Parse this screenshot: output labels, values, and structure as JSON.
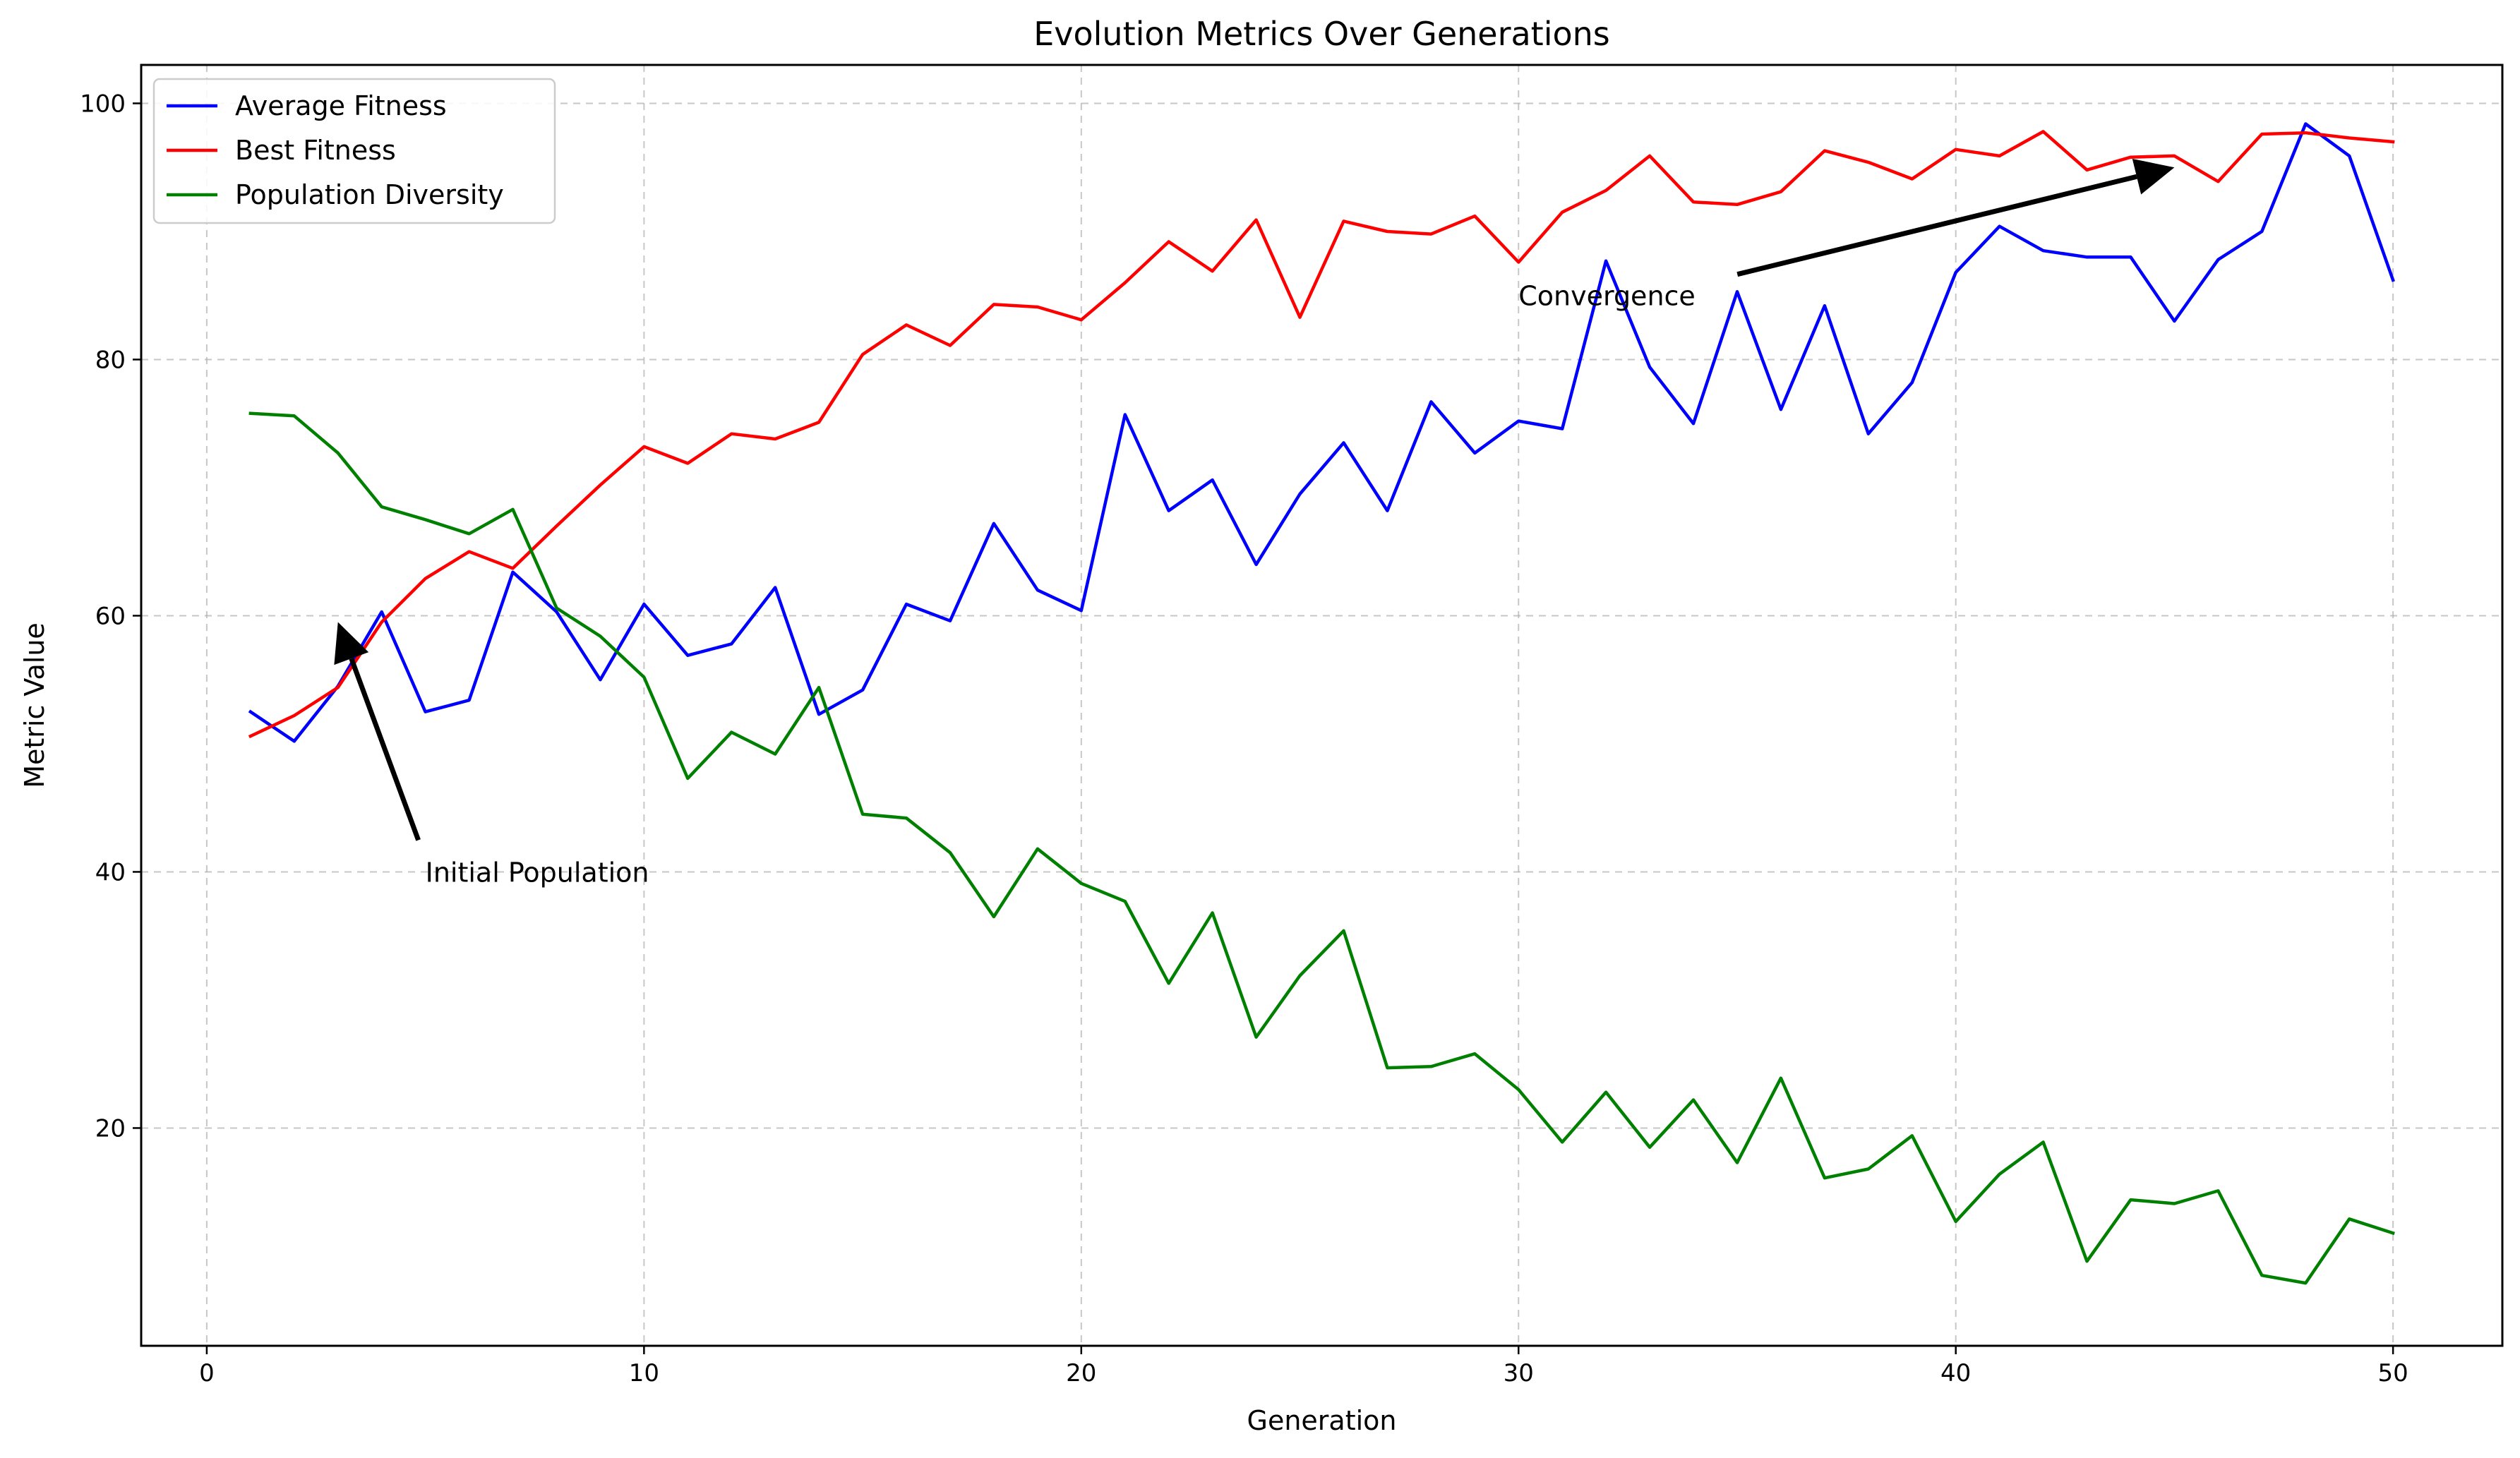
{
  "chart_data": {
    "type": "line",
    "title": "Evolution Metrics Over Generations",
    "xlabel": "Generation",
    "ylabel": "Metric Value",
    "xlim": [
      -1.5,
      52.5
    ],
    "ylim": [
      3,
      103
    ],
    "xticks": [
      0,
      10,
      20,
      30,
      40,
      50
    ],
    "yticks": [
      20,
      40,
      60,
      80,
      100
    ],
    "grid": true,
    "legend_position": "top-left",
    "x": [
      1,
      2,
      3,
      4,
      5,
      6,
      7,
      8,
      9,
      10,
      11,
      12,
      13,
      14,
      15,
      16,
      17,
      18,
      19,
      20,
      21,
      22,
      23,
      24,
      25,
      26,
      27,
      28,
      29,
      30,
      31,
      32,
      33,
      34,
      35,
      36,
      37,
      38,
      39,
      40,
      41,
      42,
      43,
      44,
      45,
      46,
      47,
      48,
      49,
      50
    ],
    "series": [
      {
        "name": "Average Fitness",
        "color": "#0000ff",
        "values": [
          52.5,
          50.2,
          54.5,
          60.3,
          52.5,
          53.4,
          63.4,
          60.3,
          55.0,
          60.9,
          56.9,
          57.8,
          62.2,
          52.3,
          54.2,
          60.9,
          59.6,
          67.2,
          62.0,
          60.4,
          75.7,
          68.2,
          70.6,
          64.0,
          69.5,
          73.5,
          68.2,
          76.7,
          72.7,
          75.2,
          74.6,
          87.7,
          79.4,
          75.0,
          85.3,
          76.1,
          84.2,
          74.2,
          78.2,
          86.8,
          90.4,
          88.5,
          88.0,
          88.0,
          83.0,
          87.8,
          90.0,
          98.4,
          95.9,
          86.2
        ]
      },
      {
        "name": "Best Fitness",
        "color": "#ff0000",
        "values": [
          50.6,
          52.2,
          54.4,
          59.5,
          62.9,
          65.0,
          63.7,
          67.0,
          70.2,
          73.2,
          71.9,
          74.2,
          73.8,
          75.1,
          80.4,
          82.7,
          81.1,
          84.3,
          84.1,
          83.1,
          86.0,
          89.2,
          86.9,
          90.9,
          83.3,
          90.8,
          90.0,
          89.8,
          91.2,
          87.6,
          91.5,
          93.2,
          95.9,
          92.3,
          92.1,
          93.1,
          96.3,
          95.4,
          94.1,
          96.4,
          95.9,
          97.8,
          94.8,
          95.8,
          95.9,
          93.9,
          97.6,
          97.7,
          97.3,
          97.0
        ]
      },
      {
        "name": "Population Diversity",
        "color": "#008000",
        "values": [
          75.8,
          75.6,
          72.7,
          68.5,
          67.5,
          66.4,
          68.3,
          60.6,
          58.4,
          55.2,
          47.3,
          50.9,
          49.2,
          54.4,
          44.5,
          44.2,
          41.5,
          36.5,
          41.8,
          39.1,
          37.7,
          31.3,
          36.8,
          27.1,
          31.9,
          35.4,
          24.7,
          24.8,
          25.8,
          23.0,
          18.9,
          22.8,
          18.5,
          22.2,
          17.3,
          23.9,
          16.1,
          16.8,
          19.4,
          12.7,
          16.4,
          18.9,
          9.6,
          14.4,
          14.1,
          15.1,
          8.5,
          7.9,
          12.9,
          11.8
        ]
      }
    ],
    "annotations": [
      {
        "text": "Initial Population",
        "xy": [
          3,
          59.5
        ],
        "xytext": [
          5,
          40
        ]
      },
      {
        "text": "Convergence",
        "xy": [
          45,
          95
        ],
        "xytext": [
          30,
          85
        ]
      }
    ]
  }
}
